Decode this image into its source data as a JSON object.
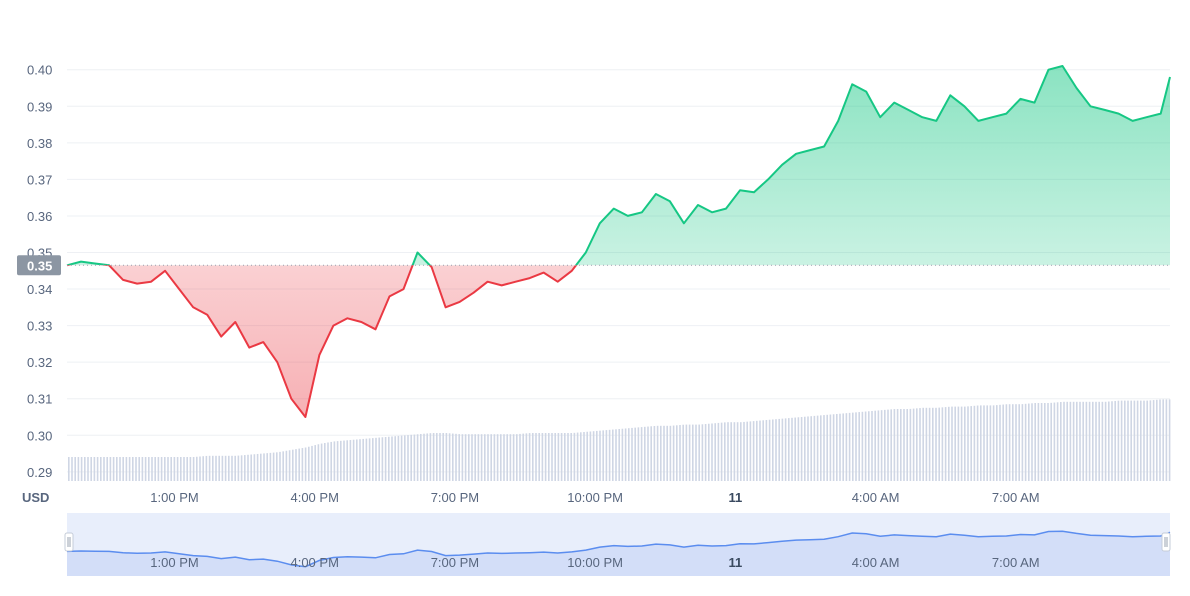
{
  "chart_data": {
    "type": "line",
    "currency_label": "USD",
    "reference_price": 0.3465,
    "reference_label": "0.35",
    "y_ticks": [
      "0.29",
      "0.30",
      "0.31",
      "0.32",
      "0.33",
      "0.34",
      "0.35",
      "0.36",
      "0.37",
      "0.38",
      "0.39",
      "0.40"
    ],
    "y_tick_values": [
      0.29,
      0.3,
      0.31,
      0.32,
      0.33,
      0.34,
      0.35,
      0.36,
      0.37,
      0.38,
      0.39,
      0.4
    ],
    "ylim": [
      0.2875,
      0.4125
    ],
    "x_range_hours": [
      10.7,
      34.3
    ],
    "x_ticks": [
      {
        "label": "1:00 PM",
        "hour": 13,
        "bold": false
      },
      {
        "label": "4:00 PM",
        "hour": 16,
        "bold": false
      },
      {
        "label": "7:00 PM",
        "hour": 19,
        "bold": false
      },
      {
        "label": "10:00 PM",
        "hour": 22,
        "bold": false
      },
      {
        "label": "11",
        "hour": 25,
        "bold": true
      },
      {
        "label": "4:00 AM",
        "hour": 28,
        "bold": false
      },
      {
        "label": "7:00 AM",
        "hour": 31,
        "bold": false
      }
    ],
    "x_hours": [
      10.7,
      11.0,
      11.3,
      11.6,
      11.9,
      12.2,
      12.5,
      12.8,
      13.1,
      13.4,
      13.7,
      14.0,
      14.3,
      14.6,
      14.9,
      15.2,
      15.5,
      15.8,
      16.1,
      16.4,
      16.7,
      17.0,
      17.3,
      17.6,
      17.9,
      18.2,
      18.5,
      18.8,
      19.1,
      19.4,
      19.7,
      20.0,
      20.3,
      20.6,
      20.9,
      21.2,
      21.5,
      21.8,
      22.1,
      22.4,
      22.7,
      23.0,
      23.3,
      23.6,
      23.9,
      24.2,
      24.5,
      24.8,
      25.1,
      25.4,
      25.7,
      26.0,
      26.3,
      26.6,
      26.9,
      27.2,
      27.5,
      27.8,
      28.1,
      28.4,
      28.7,
      29.0,
      29.3,
      29.6,
      29.9,
      30.2,
      30.5,
      30.8,
      31.1,
      31.4,
      31.7,
      32.0,
      32.3,
      32.6,
      32.9,
      33.2,
      33.5,
      33.8,
      34.1,
      34.3
    ],
    "price": [
      0.3465,
      0.3475,
      0.347,
      0.3465,
      0.3425,
      0.3415,
      0.342,
      0.345,
      0.34,
      0.335,
      0.333,
      0.327,
      0.331,
      0.324,
      0.3255,
      0.32,
      0.31,
      0.305,
      0.322,
      0.33,
      0.332,
      0.331,
      0.329,
      0.338,
      0.34,
      0.35,
      0.346,
      0.335,
      0.3365,
      0.339,
      0.342,
      0.341,
      0.342,
      0.343,
      0.3445,
      0.342,
      0.345,
      0.35,
      0.358,
      0.362,
      0.36,
      0.361,
      0.366,
      0.364,
      0.358,
      0.363,
      0.361,
      0.362,
      0.367,
      0.3665,
      0.37,
      0.374,
      0.377,
      0.378,
      0.379,
      0.386,
      0.396,
      0.394,
      0.387,
      0.391,
      0.389,
      0.387,
      0.386,
      0.393,
      0.39,
      0.386,
      0.387,
      0.388,
      0.392,
      0.391,
      0.4,
      0.401,
      0.395,
      0.39,
      0.389,
      0.388,
      0.386,
      0.387,
      0.388,
      0.398
    ],
    "volume": [
      0.2,
      0.2,
      0.2,
      0.2,
      0.2,
      0.2,
      0.2,
      0.2,
      0.2,
      0.2,
      0.21,
      0.21,
      0.21,
      0.22,
      0.23,
      0.24,
      0.26,
      0.28,
      0.31,
      0.33,
      0.34,
      0.35,
      0.36,
      0.37,
      0.38,
      0.39,
      0.4,
      0.4,
      0.39,
      0.39,
      0.39,
      0.39,
      0.39,
      0.4,
      0.4,
      0.4,
      0.4,
      0.41,
      0.42,
      0.43,
      0.44,
      0.45,
      0.46,
      0.46,
      0.47,
      0.47,
      0.48,
      0.49,
      0.49,
      0.5,
      0.51,
      0.52,
      0.53,
      0.54,
      0.55,
      0.56,
      0.57,
      0.58,
      0.59,
      0.6,
      0.6,
      0.61,
      0.61,
      0.62,
      0.62,
      0.63,
      0.63,
      0.64,
      0.64,
      0.65,
      0.65,
      0.66,
      0.66,
      0.66,
      0.66,
      0.67,
      0.67,
      0.67,
      0.68,
      0.68
    ],
    "up_color": "#16c784",
    "down_color": "#ea3943",
    "volume_color": "#cfd6e4",
    "navigator_color": "#5b8def"
  }
}
